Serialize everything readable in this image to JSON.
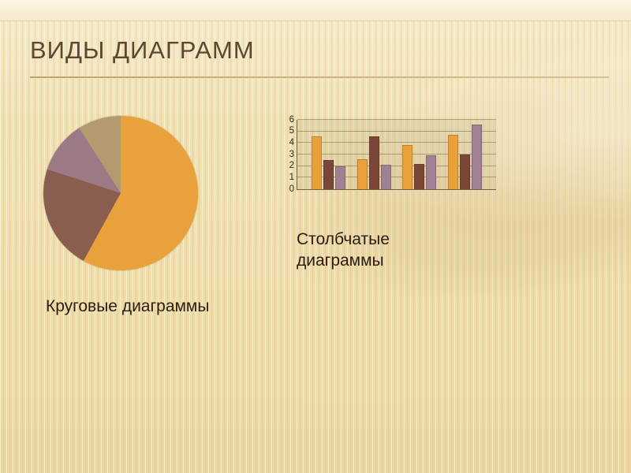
{
  "slide": {
    "title": "ВИДЫ ДИАГРАММ"
  },
  "colors": {
    "background": "#F0DFAC",
    "top_band": "#F8F0D8",
    "title_text": "#5C4732",
    "title_rule": "#C9AA6A",
    "caption_text": "#2A1C11",
    "chart_orange": "#E9A13B",
    "chart_brown": "#7A4638",
    "chart_mauve": "#A08194",
    "pie_brown": "#8B5D4F",
    "pie_tan": "#B49A6F"
  },
  "chart_data": [
    {
      "type": "pie",
      "title": "Круговые диаграммы",
      "unit": "percent",
      "slices": [
        {
          "label": "orange",
          "value": 58,
          "color": "#E9A13B"
        },
        {
          "label": "brown",
          "value": 22,
          "color": "#8B5D4F"
        },
        {
          "label": "mauve",
          "value": 11,
          "color": "#9C7A85"
        },
        {
          "label": "tan",
          "value": 9,
          "color": "#B49A6F"
        }
      ],
      "legend": false
    },
    {
      "type": "bar",
      "title": "Столбчатые диаграммы",
      "categories": [
        "",
        "",
        "",
        ""
      ],
      "series": [
        {
          "name": "orange",
          "color": "#E9A13B",
          "values": [
            4.6,
            2.6,
            3.8,
            4.7
          ]
        },
        {
          "name": "brown",
          "color": "#7A4638",
          "values": [
            2.5,
            4.6,
            2.2,
            3.0
          ]
        },
        {
          "name": "mauve",
          "color": "#A08194",
          "values": [
            2.0,
            2.1,
            2.9,
            5.6
          ]
        }
      ],
      "ylim": [
        0,
        6
      ],
      "yticks": [
        0,
        1,
        2,
        3,
        4,
        5,
        6
      ],
      "grid": true,
      "legend": false
    }
  ]
}
